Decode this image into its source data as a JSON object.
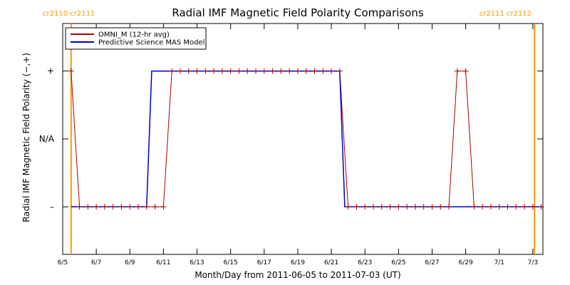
{
  "chart_data": {
    "type": "line",
    "title": "Radial IMF Magnetic Field Polarity Comparisons",
    "xlabel": "Month/Day from 2011-06-05 to 2011-07-03 (UT)",
    "ylabel": "Radial IMF Magnetic Field Polarity (−,+)",
    "xlim_days": [
      0,
      28.6
    ],
    "ylim": [
      -1.7,
      1.7
    ],
    "x_ticks": [
      {
        "day": 0,
        "label": "6/5"
      },
      {
        "day": 2,
        "label": "6/7"
      },
      {
        "day": 4,
        "label": "6/9"
      },
      {
        "day": 6,
        "label": "6/11"
      },
      {
        "day": 8,
        "label": "6/13"
      },
      {
        "day": 10,
        "label": "6/15"
      },
      {
        "day": 12,
        "label": "6/17"
      },
      {
        "day": 14,
        "label": "6/19"
      },
      {
        "day": 16,
        "label": "6/21"
      },
      {
        "day": 18,
        "label": "6/23"
      },
      {
        "day": 20,
        "label": "6/25"
      },
      {
        "day": 22,
        "label": "6/27"
      },
      {
        "day": 24,
        "label": "6/29"
      },
      {
        "day": 26,
        "label": "7/1"
      },
      {
        "day": 28,
        "label": "7/3"
      }
    ],
    "y_ticks": [
      {
        "value": 1,
        "label": "+"
      },
      {
        "value": 0,
        "label": "N/A"
      },
      {
        "value": -1,
        "label": "–"
      }
    ],
    "carrington_markers": [
      {
        "day": 0.5,
        "label": "cr2110 cr2111",
        "position": "left"
      },
      {
        "day": 28.1,
        "label": "cr2111 cr2112",
        "position": "right"
      }
    ],
    "series": [
      {
        "name": "OMNI_M (12-hr avg)",
        "color": "#aa0000",
        "marker": "plus",
        "points": [
          [
            0.5,
            1
          ],
          [
            1.0,
            -1
          ],
          [
            1.5,
            -1
          ],
          [
            2.0,
            -1
          ],
          [
            2.5,
            -1
          ],
          [
            3.0,
            -1
          ],
          [
            3.5,
            -1
          ],
          [
            4.0,
            -1
          ],
          [
            4.5,
            -1
          ],
          [
            5.0,
            -1
          ],
          [
            5.5,
            -1
          ],
          [
            6.0,
            -1
          ],
          [
            6.5,
            1
          ],
          [
            7.0,
            1
          ],
          [
            7.5,
            1
          ],
          [
            8.0,
            1
          ],
          [
            8.5,
            1
          ],
          [
            9.0,
            1
          ],
          [
            9.5,
            1
          ],
          [
            10.0,
            1
          ],
          [
            10.5,
            1
          ],
          [
            11.0,
            1
          ],
          [
            11.5,
            1
          ],
          [
            12.0,
            1
          ],
          [
            12.5,
            1
          ],
          [
            13.0,
            1
          ],
          [
            13.5,
            1
          ],
          [
            14.0,
            1
          ],
          [
            14.5,
            1
          ],
          [
            15.0,
            1
          ],
          [
            15.5,
            1
          ],
          [
            16.0,
            1
          ],
          [
            16.5,
            1
          ],
          [
            17.0,
            -1
          ],
          [
            17.5,
            -1
          ],
          [
            18.0,
            -1
          ],
          [
            18.5,
            -1
          ],
          [
            19.0,
            -1
          ],
          [
            19.5,
            -1
          ],
          [
            20.0,
            -1
          ],
          [
            20.5,
            -1
          ],
          [
            21.0,
            -1
          ],
          [
            21.5,
            -1
          ],
          [
            22.0,
            -1
          ],
          [
            22.5,
            -1
          ],
          [
            23.0,
            -1
          ],
          [
            23.5,
            1
          ],
          [
            24.0,
            1
          ],
          [
            24.5,
            -1
          ],
          [
            25.0,
            -1
          ],
          [
            25.5,
            -1
          ],
          [
            26.0,
            -1
          ],
          [
            26.5,
            -1
          ],
          [
            27.0,
            -1
          ],
          [
            27.5,
            -1
          ],
          [
            28.0,
            -1
          ],
          [
            28.5,
            -1
          ]
        ]
      },
      {
        "name": "Predictive Science MAS Model",
        "color": "#0000cc",
        "marker": "none",
        "points": [
          [
            0.5,
            -1
          ],
          [
            5.0,
            -1
          ],
          [
            5.3,
            1
          ],
          [
            16.5,
            1
          ],
          [
            16.8,
            -1
          ],
          [
            28.5,
            -1
          ]
        ]
      }
    ],
    "grid": false,
    "legend": "top-left"
  }
}
